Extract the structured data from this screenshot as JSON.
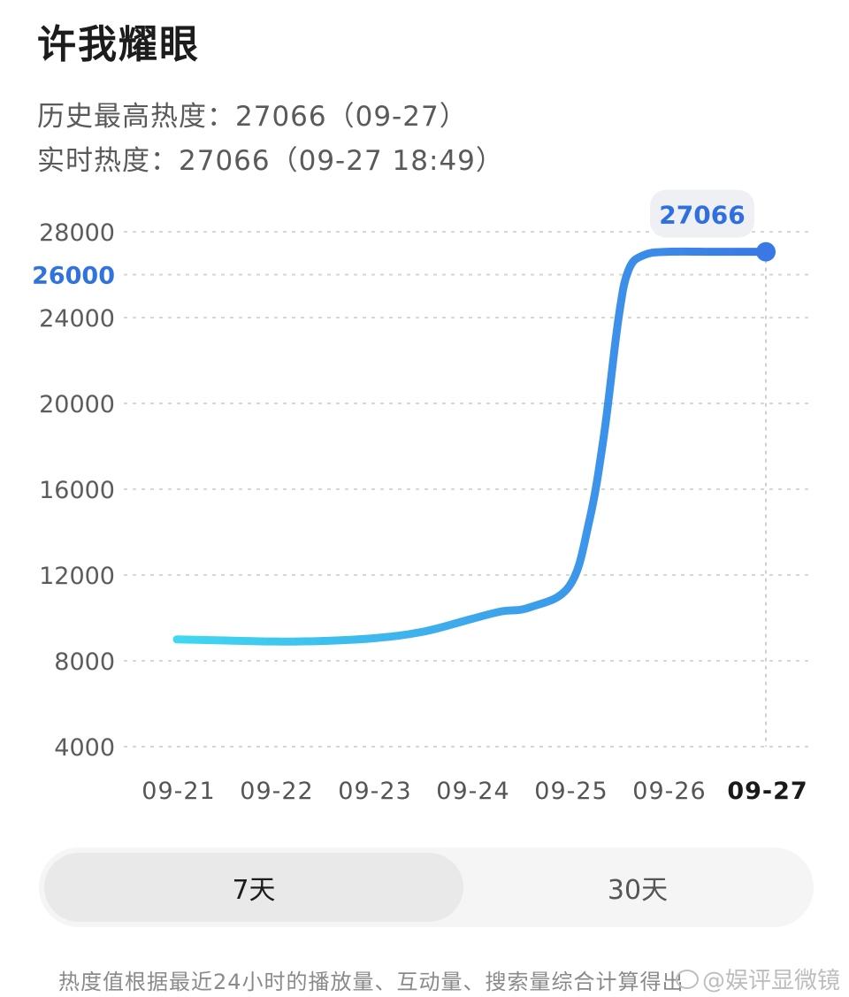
{
  "header": {
    "title": "许我耀眼",
    "peak_line": "历史最高热度：27066（09-27）",
    "live_line": "实时热度：27066（09-27 18:49）"
  },
  "chart_data": {
    "type": "line",
    "x": [
      "09-21",
      "09-21.5",
      "09-22",
      "09-22.5",
      "09-23",
      "09-23.5",
      "09-24",
      "09-24.3",
      "09-24.6",
      "09-25",
      "09-25.2",
      "09-25.35",
      "09-25.5",
      "09-25.6",
      "09-25.75",
      "09-26",
      "09-26.5",
      "09-27"
    ],
    "x_numeric": [
      0,
      0.5,
      1,
      1.5,
      2,
      2.5,
      3,
      3.3,
      3.6,
      4,
      4.2,
      4.35,
      4.5,
      4.6,
      4.75,
      5,
      5.5,
      6
    ],
    "values": [
      9000,
      8950,
      8900,
      8930,
      9050,
      9350,
      9950,
      10300,
      10500,
      11500,
      14500,
      18500,
      24000,
      26200,
      26900,
      27066,
      27066,
      27066
    ],
    "categories": [
      "09-21",
      "09-22",
      "09-23",
      "09-24",
      "09-25",
      "09-26",
      "09-27"
    ],
    "y_ticks": [
      4000,
      8000,
      12000,
      16000,
      20000,
      24000,
      26000,
      28000
    ],
    "highlighted_y_tick": 26000,
    "ylim": [
      4000,
      28000
    ],
    "selected_category": "09-27",
    "tooltip_value": "27066",
    "grid": true,
    "colors": {
      "line_start": "#40d8f0",
      "line_end": "#3a78e6",
      "tooltip_bg": "#eef0f3",
      "dot": "#3a78e6"
    }
  },
  "segmented": {
    "options": [
      "7天",
      "30天"
    ],
    "selected": "7天"
  },
  "footer": {
    "note": "热度值根据最近24小时的播放量、互动量、搜索量综合计算得出",
    "watermark": "@娱评显微镜"
  }
}
